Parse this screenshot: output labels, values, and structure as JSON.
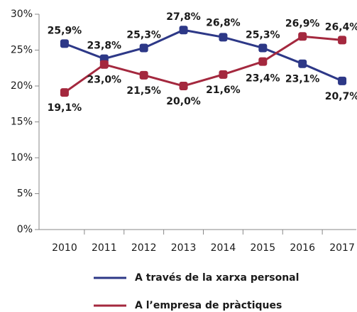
{
  "chart_data": {
    "type": "line",
    "categories": [
      "2010",
      "2011",
      "2012",
      "2013",
      "2014",
      "2015",
      "2016",
      "2017"
    ],
    "series": [
      {
        "name": "A través de la xarxa personal",
        "color": "#2d3887",
        "values": [
          25.9,
          23.8,
          25.3,
          27.8,
          26.8,
          25.3,
          23.1,
          20.7
        ],
        "value_labels": [
          "25,9%",
          "23,8%",
          "25,3%",
          "27,8%",
          "26,8%",
          "25,3%",
          "23,1%",
          "20,7%"
        ]
      },
      {
        "name": "A l’empresa de pràctiques",
        "color": "#a4283e",
        "values": [
          19.1,
          23.0,
          21.5,
          20.0,
          21.6,
          23.4,
          26.9,
          26.4
        ],
        "value_labels": [
          "19,1%",
          "23,0%",
          "21,5%",
          "20,0%",
          "21,6%",
          "23,4%",
          "26,9%",
          "26,4%"
        ]
      }
    ],
    "ylim": [
      0,
      30
    ],
    "yticks": [
      {
        "value": 0,
        "label": "0%"
      },
      {
        "value": 5,
        "label": "5%"
      },
      {
        "value": 10,
        "label": "10%"
      },
      {
        "value": 15,
        "label": "15%"
      },
      {
        "value": 20,
        "label": "20%"
      },
      {
        "value": 25,
        "label": "25%"
      },
      {
        "value": 30,
        "label": "30%"
      }
    ],
    "legend": "bottom"
  }
}
